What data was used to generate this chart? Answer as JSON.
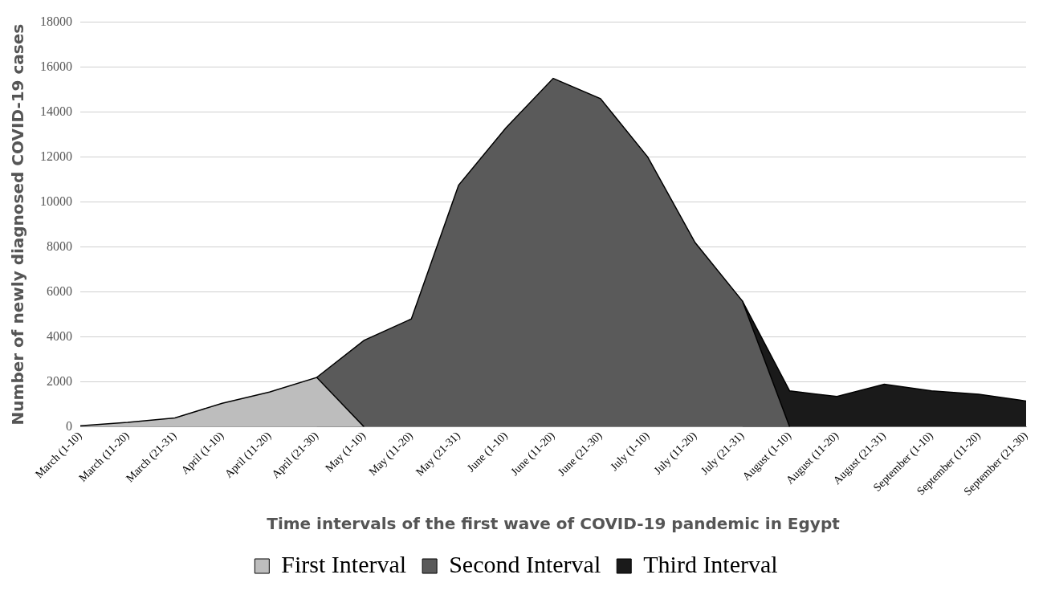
{
  "chart_data": {
    "type": "area",
    "xlabel": "Time intervals of the first wave of COVID-19 pandemic in Egypt",
    "ylabel": "Number of newly diagnosed COVID-19 cases",
    "categories": [
      "March (1-10)",
      "March (11-20)",
      "March (21-31)",
      "April (1-10)",
      "April (11-20)",
      "April (21-30)",
      "May (1-10)",
      "May (11-20)",
      "May (21-31)",
      "June (1-10)",
      "June (11-20)",
      "June (21-30)",
      "July (1-10)",
      "July (11-20)",
      "July (21-31)",
      "August (1-10)",
      "August (11-20)",
      "August (21-31)",
      "September (1-10)",
      "September (11-20)",
      "September (21-30)"
    ],
    "series": [
      {
        "name": "First Interval",
        "color": "#bdbdbd",
        "values": [
          50,
          200,
          400,
          1050,
          1550,
          2200,
          0,
          null,
          null,
          null,
          null,
          null,
          null,
          null,
          null,
          null,
          null,
          null,
          null,
          null,
          null
        ]
      },
      {
        "name": "Second Interval",
        "color": "#5a5a5a",
        "values": [
          null,
          null,
          null,
          null,
          null,
          2200,
          3850,
          4800,
          10750,
          13300,
          15500,
          14600,
          12000,
          8200,
          5600,
          0,
          null,
          null,
          null,
          null,
          null
        ]
      },
      {
        "name": "Third Interval",
        "color": "#1a1a1a",
        "values": [
          null,
          null,
          null,
          null,
          null,
          null,
          null,
          null,
          null,
          null,
          null,
          null,
          null,
          null,
          5600,
          1600,
          1350,
          1900,
          1600,
          1450,
          1150
        ]
      }
    ],
    "ylim": [
      0,
      18000
    ],
    "yticks": [
      0,
      2000,
      4000,
      6000,
      8000,
      10000,
      12000,
      14000,
      16000,
      18000
    ],
    "grid": "y",
    "legend": "bottom"
  }
}
